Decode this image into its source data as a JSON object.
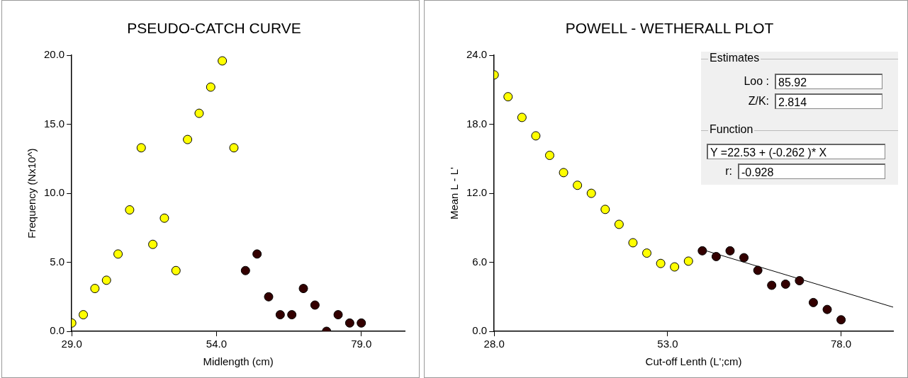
{
  "chart_data": [
    {
      "type": "scatter",
      "title": "PSEUDO-CATCH CURVE",
      "xlabel": "Midlength (cm)",
      "ylabel": "Frequency (Nx10^)",
      "marker": "circle",
      "legend": false,
      "grid": false,
      "xlim": [
        29,
        86.5
      ],
      "xticks": [
        {
          "value": 29,
          "label": "29.0"
        },
        {
          "value": 54,
          "label": "54.0"
        },
        {
          "value": 79,
          "label": "79.0"
        }
      ],
      "ylim": [
        0,
        20
      ],
      "yticks": [
        {
          "value": 0,
          "label": "0.0"
        },
        {
          "value": 5,
          "label": "5.0"
        },
        {
          "value": 10,
          "label": "10.0"
        },
        {
          "value": 15,
          "label": "15.0"
        },
        {
          "value": 20,
          "label": "20.0"
        }
      ],
      "series": [
        {
          "color": "#ffff00",
          "x": [
            29,
            31,
            33,
            35,
            37,
            39,
            41,
            43,
            45,
            47,
            49,
            51,
            53,
            55,
            57
          ],
          "values": [
            0.6,
            1.2,
            3.1,
            3.7,
            5.6,
            8.8,
            13.3,
            6.3,
            8.2,
            4.4,
            13.9,
            15.8,
            17.7,
            19.6,
            13.3
          ]
        },
        {
          "color": "#330000",
          "x": [
            59,
            61,
            63,
            65,
            67,
            69,
            71,
            73,
            75,
            77,
            79
          ],
          "values": [
            4.4,
            5.6,
            2.5,
            1.2,
            1.2,
            3.1,
            1.9,
            0.0,
            1.2,
            0.6,
            0.6
          ]
        }
      ]
    },
    {
      "type": "scatter",
      "title": "POWELL - WETHERALL PLOT",
      "xlabel": "Cut-off Lenth (L';cm)",
      "ylabel": "Mean L - L'",
      "marker": "circle",
      "legend": false,
      "grid": false,
      "xlim": [
        28,
        85.5
      ],
      "xticks": [
        {
          "value": 28,
          "label": "28.0"
        },
        {
          "value": 53,
          "label": "53.0"
        },
        {
          "value": 78,
          "label": "78.0"
        }
      ],
      "ylim": [
        0,
        24
      ],
      "yticks": [
        {
          "value": 0,
          "label": "0.0"
        },
        {
          "value": 6,
          "label": "6.0"
        },
        {
          "value": 12,
          "label": "12.0"
        },
        {
          "value": 18,
          "label": "18.0"
        },
        {
          "value": 24,
          "label": "24.0"
        }
      ],
      "annotations": [
        "Estimates",
        "Loo :",
        "85.92",
        "Z/K:",
        "2.814",
        "Function",
        "Y =22.53 + (-0.262 )* X",
        "r:",
        "-0.928"
      ],
      "series": [
        {
          "color": "#ffff00",
          "x": [
            28,
            30,
            32,
            34,
            36,
            38,
            40,
            42,
            44,
            46,
            48,
            50,
            52,
            54,
            56
          ],
          "values": [
            22.3,
            20.4,
            18.6,
            17.0,
            15.3,
            13.8,
            12.7,
            12.0,
            10.6,
            9.3,
            7.7,
            6.8,
            5.9,
            5.6,
            6.1
          ]
        },
        {
          "color": "#330000",
          "x": [
            58,
            60,
            62,
            64,
            66,
            68,
            70,
            72,
            74,
            76,
            78
          ],
          "values": [
            7.0,
            6.5,
            7.0,
            6.4,
            5.3,
            4.0,
            4.1,
            4.4,
            2.5,
            1.9,
            1.0
          ]
        },
        {
          "type": "line",
          "marker": "none",
          "color": "#000000",
          "x": [
            58,
            85.5
          ],
          "values": [
            7.1,
            2.1
          ]
        }
      ]
    }
  ]
}
